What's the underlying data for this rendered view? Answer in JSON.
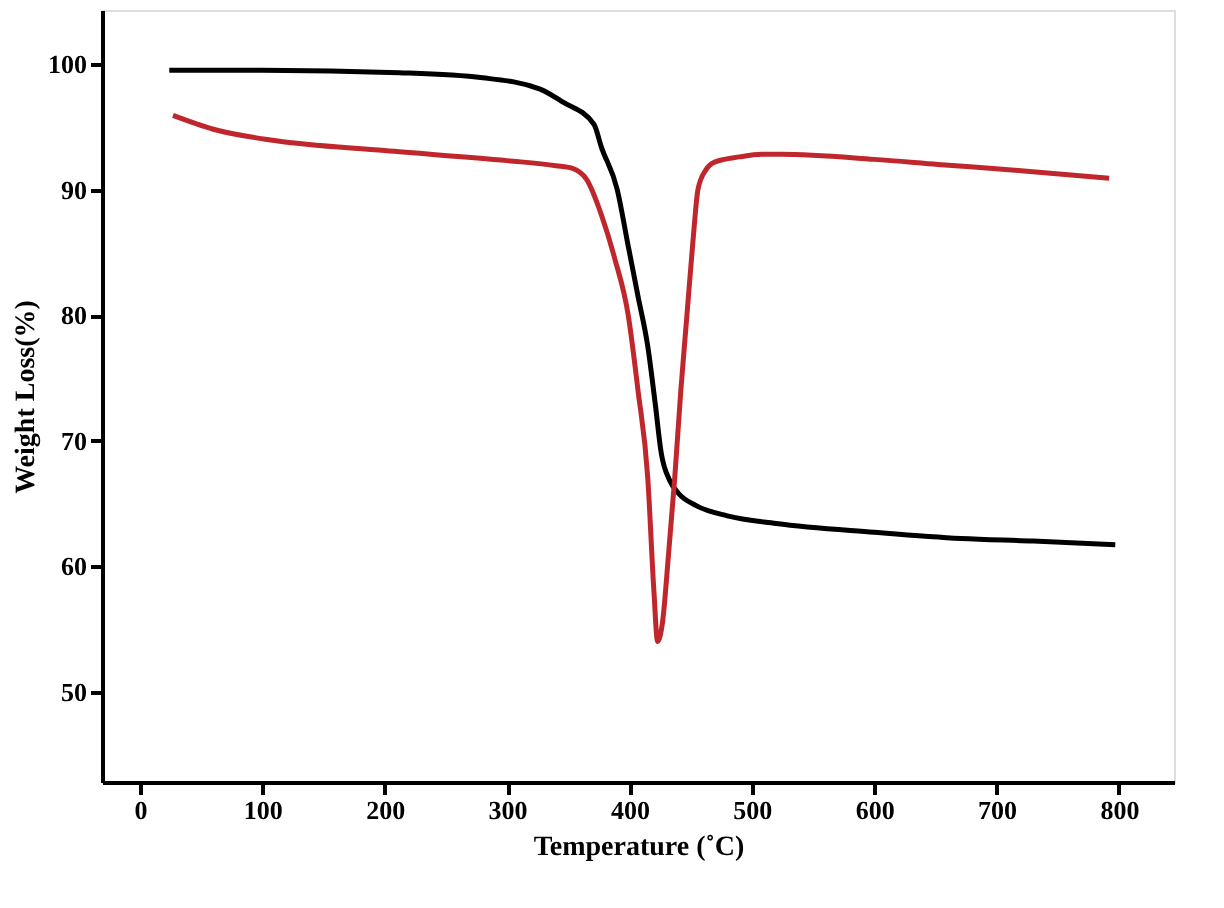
{
  "chart_data": {
    "type": "line",
    "xlabel": "Temperature (˚C)",
    "ylabel": "Weight Loss(%)",
    "xlim": [
      -31,
      845
    ],
    "ylim": [
      42.8,
      104.3
    ],
    "xticks": [
      0,
      100,
      200,
      300,
      400,
      500,
      600,
      700,
      800
    ],
    "yticks": [
      50,
      60,
      70,
      80,
      90,
      100
    ],
    "grid": false,
    "line_style": "solid",
    "series": [
      {
        "color": "#000000",
        "x": [
          24,
          100,
          212,
          280,
          327,
          345,
          371,
          377,
          390,
          399,
          407,
          415,
          421,
          426,
          433,
          440,
          455,
          480,
          520,
          600,
          671,
          730,
          797
        ],
        "values": [
          99.5,
          99.5,
          99.3,
          98.9,
          98,
          97,
          95.2,
          93.4,
          90,
          85.5,
          81.5,
          77.5,
          73,
          69,
          66.8,
          65.8,
          64.8,
          64,
          63.4,
          62.7,
          62.2,
          62,
          61.7
        ]
      },
      {
        "color": "#c0272d",
        "x": [
          27,
          60,
          110,
          200,
          300,
          340,
          353,
          365,
          377,
          388,
          399,
          407,
          415,
          420,
          423,
          427,
          432,
          437,
          442,
          447,
          452,
          456,
          462,
          470,
          490,
          508,
          524,
          600,
          652,
          720,
          792
        ],
        "values": [
          95.9,
          94.8,
          93.9,
          93.1,
          92.3,
          91.9,
          91.7,
          90.8,
          88,
          84.5,
          80,
          74,
          67,
          58,
          54,
          55.5,
          61,
          67,
          74,
          80,
          86,
          90,
          91.5,
          92.2,
          92.6,
          92.8,
          92.8,
          92.4,
          92,
          91.5,
          90.9
        ]
      }
    ]
  }
}
